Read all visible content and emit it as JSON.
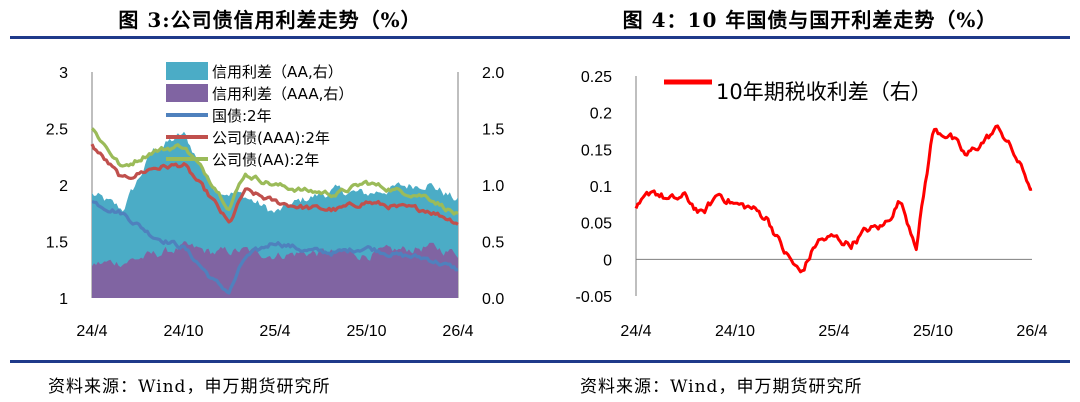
{
  "titles": {
    "left": "图 3:公司债信用利差走势（%）",
    "right": "图 4：10 年国债与国开利差走势（%）"
  },
  "source": {
    "left": "资料来源：Wind，申万期货研究所",
    "right": "资料来源：Wind，申万期货研究所"
  },
  "colors": {
    "rule": "#1f3a8a",
    "aa_spread": "#4bacc6",
    "aaa_spread": "#8064a2",
    "treasury": "#4f81bd",
    "corp_aaa": "#c0504d",
    "corp_aa": "#9bbb59",
    "spread_10y": "#ff0000"
  },
  "chart_data": [
    {
      "type": "line",
      "x_tick_labels": [
        "24/4",
        "24/10",
        "25/4",
        "25/10",
        "26/4"
      ],
      "x_ticks": [
        "2024-04",
        "2024-10",
        "2025-04",
        "2025-10",
        "2026-04"
      ],
      "x_range": [
        "2024-04",
        "2026-04"
      ],
      "left_axis": {
        "ylim": [
          1,
          3
        ],
        "tick_labels": [
          "1",
          "1.5",
          "2",
          "2.5",
          "3"
        ]
      },
      "right_axis": {
        "ylim": [
          0,
          2
        ],
        "tick_labels": [
          "0.0",
          "0.5",
          "1.0",
          "1.5",
          "2.0"
        ]
      },
      "legend_position": "top-center",
      "series": [
        {
          "name": "信用利差（AA,右）",
          "kind": "area",
          "axis": "right",
          "x": [
            "2024-04",
            "2024-06",
            "2024-08",
            "2024-10",
            "2024-12",
            "2025-02",
            "2025-04",
            "2025-06",
            "2025-08",
            "2025-10",
            "2025-12",
            "2026-02",
            "2026-04"
          ],
          "values": [
            0.92,
            0.78,
            1.3,
            1.45,
            0.98,
            0.9,
            0.75,
            0.88,
            0.95,
            0.92,
            0.98,
            1.02,
            0.86
          ]
        },
        {
          "name": "信用利差（AAA,右）",
          "kind": "area",
          "axis": "right",
          "x": [
            "2024-04",
            "2024-06",
            "2024-08",
            "2024-10",
            "2024-12",
            "2025-02",
            "2025-04",
            "2025-06",
            "2025-08",
            "2025-10",
            "2025-12",
            "2026-02",
            "2026-04"
          ],
          "values": [
            0.3,
            0.32,
            0.38,
            0.45,
            0.4,
            0.42,
            0.38,
            0.4,
            0.4,
            0.38,
            0.42,
            0.45,
            0.4
          ]
        },
        {
          "name": "国债:2年",
          "kind": "line",
          "axis": "left",
          "x": [
            "2024-04",
            "2024-06",
            "2024-08",
            "2024-10",
            "2024-12",
            "2025-01",
            "2025-02",
            "2025-04",
            "2025-06",
            "2025-08",
            "2025-10",
            "2025-12",
            "2026-02",
            "2026-04"
          ],
          "values": [
            1.85,
            1.75,
            1.55,
            1.45,
            1.15,
            1.05,
            1.35,
            1.5,
            1.42,
            1.4,
            1.45,
            1.38,
            1.35,
            1.25
          ]
        },
        {
          "name": "公司债(AAA):2年",
          "kind": "line",
          "axis": "left",
          "x": [
            "2024-04",
            "2024-06",
            "2024-08",
            "2024-10",
            "2024-12",
            "2025-01",
            "2025-02",
            "2025-04",
            "2025-06",
            "2025-08",
            "2025-10",
            "2025-12",
            "2026-02",
            "2026-04"
          ],
          "values": [
            2.35,
            2.05,
            2.15,
            2.18,
            1.85,
            1.65,
            1.95,
            1.85,
            1.8,
            1.78,
            1.85,
            1.8,
            1.78,
            1.67
          ]
        },
        {
          "name": "公司债(AA):2年",
          "kind": "line",
          "axis": "left",
          "x": [
            "2024-04",
            "2024-06",
            "2024-08",
            "2024-10",
            "2024-12",
            "2025-01",
            "2025-02",
            "2025-04",
            "2025-06",
            "2025-08",
            "2025-10",
            "2025-12",
            "2026-02",
            "2026-04"
          ],
          "values": [
            2.5,
            2.15,
            2.3,
            2.35,
            2.0,
            1.8,
            2.1,
            2.0,
            1.95,
            1.92,
            2.02,
            1.95,
            1.9,
            1.73
          ]
        }
      ]
    },
    {
      "type": "line",
      "x_tick_labels": [
        "24/4",
        "24/10",
        "25/4",
        "25/10",
        "26/4"
      ],
      "x_ticks": [
        "2024-04",
        "2024-10",
        "2025-04",
        "2025-10",
        "2026-04"
      ],
      "x_range": [
        "2024-04",
        "2026-04"
      ],
      "ylim": [
        -0.05,
        0.25
      ],
      "tick_labels": [
        "-0.05",
        "0",
        "0.05",
        "0.1",
        "0.15",
        "0.2",
        "0.25"
      ],
      "legend_position": "top-center",
      "series": [
        {
          "name": "10年期税收利差（右）",
          "kind": "line",
          "x": [
            "2024-04",
            "2024-05",
            "2024-06",
            "2024-07",
            "2024-08",
            "2024-09",
            "2024-10",
            "2024-11",
            "2024-12",
            "2025-01",
            "2025-02",
            "2025-03",
            "2025-04",
            "2025-05",
            "2025-06",
            "2025-07",
            "2025-08",
            "2025-09",
            "2025-10",
            "2025-11",
            "2025-12",
            "2026-01",
            "2026-02",
            "2026-03",
            "2026-04"
          ],
          "values": [
            0.065,
            0.095,
            0.08,
            0.085,
            0.06,
            0.09,
            0.075,
            0.07,
            0.055,
            0.01,
            -0.02,
            0.025,
            0.03,
            0.02,
            0.04,
            0.045,
            0.08,
            0.02,
            0.175,
            0.17,
            0.14,
            0.16,
            0.18,
            0.14,
            0.095
          ]
        }
      ]
    }
  ]
}
